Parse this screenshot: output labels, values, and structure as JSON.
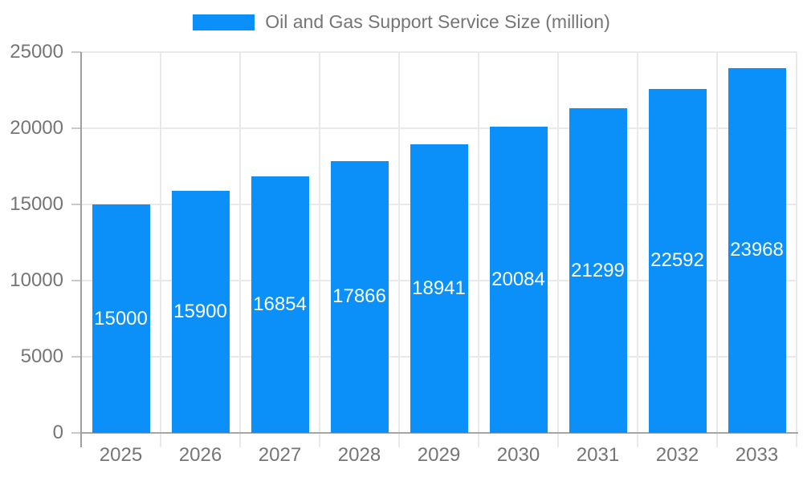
{
  "chart_data": {
    "type": "bar",
    "title": "Oil and Gas Support Service Size (million)",
    "categories": [
      "2025",
      "2026",
      "2027",
      "2028",
      "2029",
      "2030",
      "2031",
      "2032",
      "2033"
    ],
    "values": [
      15000,
      15900,
      16854,
      17866,
      18941,
      20084,
      21299,
      22592,
      23968
    ],
    "series": [
      {
        "name": "Oil and Gas Support Service Size (million)",
        "values": [
          15000,
          15900,
          16854,
          17866,
          18941,
          20084,
          21299,
          22592,
          23968
        ]
      }
    ],
    "xlabel": "",
    "ylabel": "",
    "ylim": [
      0,
      25000
    ],
    "yticks": [
      0,
      5000,
      10000,
      15000,
      20000,
      25000
    ],
    "grid": true,
    "legend_position": "top-center",
    "colors": {
      "bar": "#0b90f9",
      "bar_value_text": "#ffffff",
      "axis_text": "#757575",
      "legend_text": "#757575",
      "axis_line": "#9e9e9e",
      "baseline": "#a6a6a6",
      "gridline": "#e9e9e9",
      "background": "#ffffff"
    }
  }
}
